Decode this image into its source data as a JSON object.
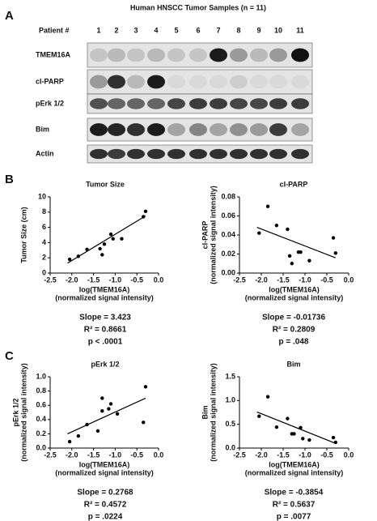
{
  "figure_title": "Human HNSCC Tumor Samples (n = 11)",
  "panel_labels": [
    "A",
    "B",
    "C"
  ],
  "blot": {
    "header": "Patient #",
    "patients": [
      "1",
      "2",
      "3",
      "4",
      "5",
      "6",
      "7",
      "8",
      "9",
      "10",
      "11"
    ],
    "rows": [
      "TMEM16A",
      "cl-PARP",
      "pErk 1/2",
      "Bim",
      "Actin"
    ]
  },
  "chart_data": [
    {
      "type": "scatter",
      "title": "Tumor Size",
      "ylabel": [
        "Tumor Size (cm)"
      ],
      "xlabel": [
        "log(TMEM16A)",
        "(normalized signal intensity)"
      ],
      "x": [
        -2.05,
        -1.85,
        -1.65,
        -1.35,
        -1.3,
        -1.25,
        -1.1,
        -1.05,
        -0.85,
        -0.35,
        -0.3
      ],
      "values": [
        1.8,
        2.2,
        3.1,
        3.2,
        2.4,
        3.8,
        5.1,
        4.5,
        4.5,
        7.4,
        8.1
      ],
      "color": "#000000",
      "trend": {
        "x": [
          -2.1,
          -0.3
        ],
        "y": [
          1.3,
          7.5
        ]
      },
      "xlim": [
        -2.5,
        0
      ],
      "xticks": [
        {
          "value": -2.5,
          "label": "-2.5"
        },
        {
          "value": -2,
          "label": "-2.0"
        },
        {
          "value": -1.5,
          "label": "-1.5"
        },
        {
          "value": -1,
          "label": "-1.0"
        },
        {
          "value": -0.5,
          "label": "-0.5"
        },
        {
          "value": 0,
          "label": "0.0"
        }
      ],
      "ylim": [
        0,
        10
      ],
      "yticks": [
        0,
        2,
        4,
        6,
        8,
        10
      ],
      "stats": [
        "Slope = 3.423",
        "R² = 0.8661",
        "p < .0001"
      ]
    },
    {
      "type": "scatter",
      "title": "cl-PARP",
      "ylabel": [
        "cl-PARP",
        "(normalized signal intensity)"
      ],
      "xlabel": [
        "log(TMEM16A)",
        "(normalized signal intensity)"
      ],
      "x": [
        -2.05,
        -1.85,
        -1.65,
        -1.4,
        -1.35,
        -1.3,
        -1.15,
        -1.1,
        -0.9,
        -0.35,
        -0.3
      ],
      "values": [
        0.042,
        0.07,
        0.05,
        0.046,
        0.018,
        0.01,
        0.022,
        0.022,
        0.013,
        0.037,
        0.021
      ],
      "color": "#000000",
      "trend": {
        "x": [
          -2.1,
          -0.3
        ],
        "y": [
          0.048,
          0.016
        ]
      },
      "xlim": [
        -2.5,
        0
      ],
      "xticks": [
        {
          "value": -2.5,
          "label": "-2.5"
        },
        {
          "value": -2,
          "label": "-2.0"
        },
        {
          "value": -1.5,
          "label": "-1.5"
        },
        {
          "value": -1,
          "label": "-1.0"
        },
        {
          "value": -0.5,
          "label": "-0.5"
        },
        {
          "value": 0,
          "label": "0.0"
        }
      ],
      "ylim": [
        0,
        0.08
      ],
      "yticks": [
        {
          "value": 0,
          "label": "0.00"
        },
        0.02,
        0.04,
        0.06,
        0.08
      ],
      "stats": [
        "Slope = -0.01736",
        "R² = 0.2809",
        "p = .048"
      ]
    },
    {
      "type": "scatter",
      "title": "pErk 1/2",
      "ylabel": [
        "pErk 1/2",
        "(normalized signal intensity)"
      ],
      "xlabel": [
        "log(TMEM16A)",
        "(normalized signal intensity)"
      ],
      "x": [
        -2.05,
        -1.85,
        -1.65,
        -1.4,
        -1.3,
        -1.3,
        -1.15,
        -1.1,
        -0.95,
        -0.35,
        -0.3
      ],
      "values": [
        0.09,
        0.17,
        0.33,
        0.24,
        0.52,
        0.7,
        0.55,
        0.62,
        0.48,
        0.36,
        0.86
      ],
      "color": "#000000",
      "trend": {
        "x": [
          -2.1,
          -0.3
        ],
        "y": [
          0.2,
          0.7
        ]
      },
      "xlim": [
        -2.5,
        0
      ],
      "xticks": [
        {
          "value": -2.5,
          "label": "-2.5"
        },
        {
          "value": -2,
          "label": "-2.0"
        },
        {
          "value": -1.5,
          "label": "-1.5"
        },
        {
          "value": -1,
          "label": "-1.0"
        },
        {
          "value": -0.5,
          "label": "-0.5"
        },
        {
          "value": 0,
          "label": "0.0"
        }
      ],
      "ylim": [
        0,
        1
      ],
      "yticks": [
        {
          "value": 0,
          "label": "0.0"
        },
        0.2,
        0.4,
        0.6,
        0.8,
        {
          "value": 1,
          "label": "1.0"
        }
      ],
      "stats": [
        "Slope = 0.2768",
        "R² = 0.4572",
        "p = .0224"
      ]
    },
    {
      "type": "scatter",
      "title": "Bim",
      "ylabel": [
        "Bim",
        "(normalized signal intensity)"
      ],
      "xlabel": [
        "log(TMEM16A)",
        "(normalized signal intensity)"
      ],
      "x": [
        -2.05,
        -1.85,
        -1.65,
        -1.4,
        -1.3,
        -1.25,
        -1.1,
        -1.05,
        -0.9,
        -0.35,
        -0.3
      ],
      "values": [
        0.67,
        1.08,
        0.44,
        0.62,
        0.3,
        0.3,
        0.43,
        0.2,
        0.17,
        0.22,
        0.12
      ],
      "color": "#000000",
      "trend": {
        "x": [
          -2.1,
          -0.3
        ],
        "y": [
          0.76,
          0.1
        ]
      },
      "xlim": [
        -2.5,
        0
      ],
      "xticks": [
        {
          "value": -2.5,
          "label": "-2.5"
        },
        {
          "value": -2,
          "label": "-2.0"
        },
        {
          "value": -1.5,
          "label": "-1.5"
        },
        {
          "value": -1,
          "label": "-1.0"
        },
        {
          "value": -0.5,
          "label": "-0.5"
        },
        {
          "value": 0,
          "label": "0.0"
        }
      ],
      "ylim": [
        0,
        1.5
      ],
      "yticks": [
        {
          "value": 0,
          "label": "0.0"
        },
        0.5,
        {
          "value": 1,
          "label": "1.0"
        },
        1.5
      ],
      "stats": [
        "Slope = -0.3854",
        "R² = 0.5637",
        "p = .0077"
      ]
    }
  ]
}
